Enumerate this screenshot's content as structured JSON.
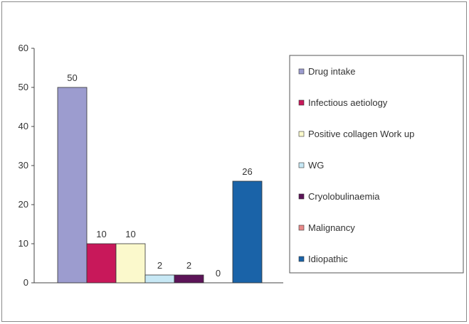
{
  "chart_data": {
    "type": "bar",
    "ylim": [
      0,
      60
    ],
    "yticks": [
      0,
      10,
      20,
      30,
      40,
      50,
      60
    ],
    "grid": false,
    "legend_position": "right",
    "categories": [
      "Drug intake",
      "Infectious aetiology",
      "Positive collagen Work up",
      "WG",
      "Cryolobulinaemia",
      "Malignancy",
      "Idiopathic"
    ],
    "values": [
      50,
      10,
      10,
      2,
      2,
      0,
      26
    ],
    "colors": [
      "#9c9ccf",
      "#c8185a",
      "#fbf9cc",
      "#c7e8f5",
      "#5c1458",
      "#e88a8a",
      "#1a63a8"
    ],
    "data_labels": [
      "50",
      "10",
      "10",
      "2",
      "2",
      "0",
      "26"
    ]
  }
}
